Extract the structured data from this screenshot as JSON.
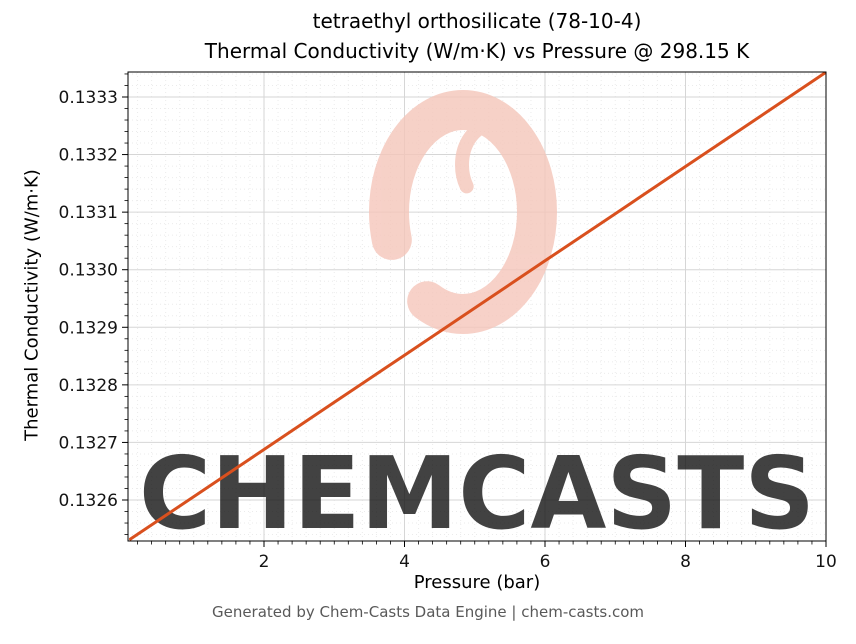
{
  "figure": {
    "title_line1": "tetraethyl orthosilicate (78-10-4)",
    "title_line2": "Thermal Conductivity (W/m·K) vs Pressure @ 298.15 K",
    "compound": "tetraethyl orthosilicate",
    "cas_number": "78-10-4",
    "temperature": "298.15 K",
    "watermark_text": "CHEMCASTS",
    "footer": "Generated by Chem-Casts Data Engine | chem-casts.com",
    "colors": {
      "line": "#d9501e",
      "watermark": "#f5c6ba",
      "grid_major": "#d6d6d6",
      "grid_minor": "#ebebeb",
      "spine": "#000000",
      "tick_label": "#141414",
      "footer_text": "#595959"
    }
  },
  "chart_data": {
    "type": "line",
    "title": "tetraethyl orthosilicate (78-10-4)\nThermal Conductivity (W/m·K) vs Pressure @ 298.15 K",
    "xlabel": "Pressure (bar)",
    "ylabel": "Thermal Conductivity (W/m·K)",
    "x": [
      0.1,
      1,
      2,
      3,
      4,
      5,
      6,
      7,
      8,
      9,
      10
    ],
    "y": [
      0.1325322,
      0.1326059,
      0.1326878,
      0.1327697,
      0.1328516,
      0.1329335,
      0.1330154,
      0.1330973,
      0.1331792,
      0.1332611,
      0.133343
    ],
    "xlim": [
      0.064,
      10
    ],
    "ylim": [
      0.1325288,
      0.1333434
    ],
    "xticks": [
      2,
      4,
      6,
      8,
      10
    ],
    "yticks": [
      0.1326,
      0.1327,
      0.1328,
      0.1329,
      0.133,
      0.1331,
      0.1332,
      0.1333
    ],
    "ytick_decimals": 4,
    "minor_x_step": 0.2,
    "minor_y_step": 2e-05,
    "grid": true,
    "legend": "none"
  }
}
